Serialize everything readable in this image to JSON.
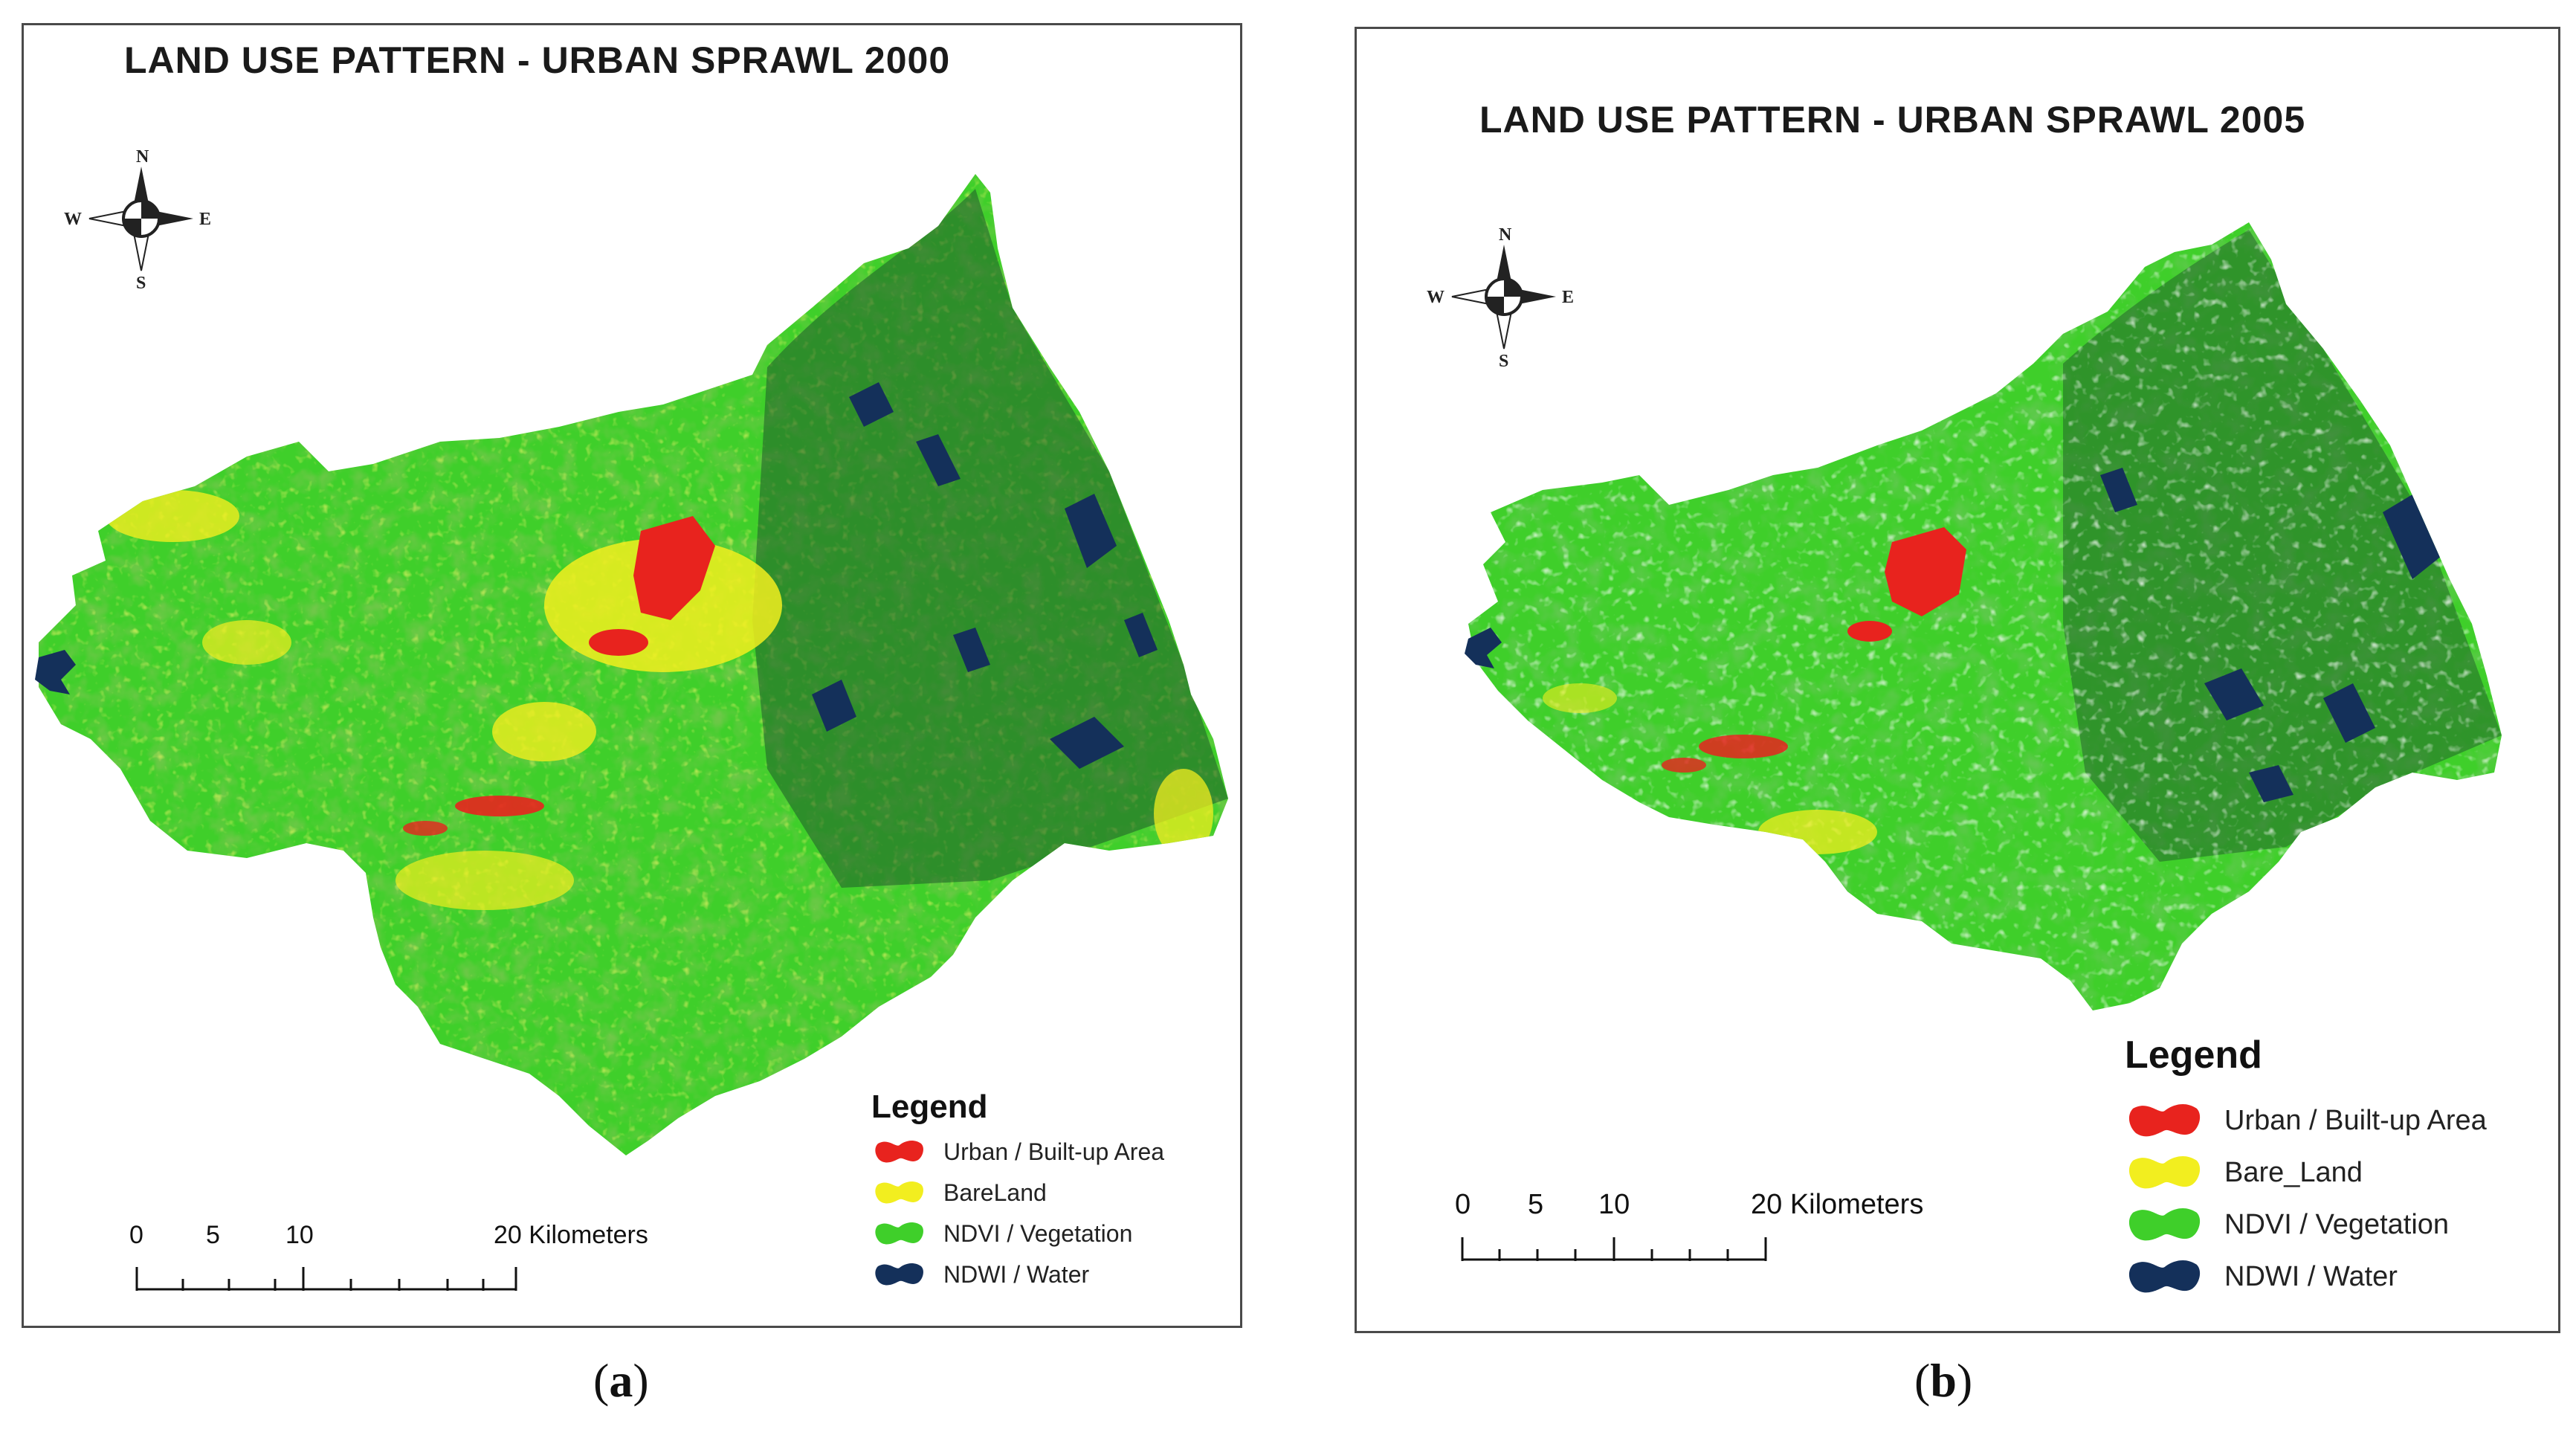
{
  "panels": [
    {
      "title": "LAND USE PATTERN - URBAN SPRAWL 2000",
      "legend": {
        "title": "Legend",
        "items": [
          {
            "label": "Urban / Built-up Area",
            "color": "#e8231e"
          },
          {
            "label": "BareLand",
            "color": "#f2ee1f"
          },
          {
            "label": "NDVI / Vegetation",
            "color": "#3fcf2a"
          },
          {
            "label": "NDWI / Water",
            "color": "#14305a"
          }
        ]
      },
      "scale": {
        "ticks": [
          "0",
          "5",
          "10"
        ],
        "end_label": "20 Kilometers"
      },
      "compass": {
        "n": "N",
        "s": "S",
        "e": "E",
        "w": "W"
      },
      "caption": {
        "open": "(",
        "letter": "a",
        "close": ")"
      }
    },
    {
      "title": "LAND USE PATTERN - URBAN SPRAWL 2005",
      "legend": {
        "title": "Legend",
        "items": [
          {
            "label": "Urban / Built-up Area",
            "color": "#e8231e"
          },
          {
            "label": "Bare_Land",
            "color": "#f2ee1f"
          },
          {
            "label": "NDVI / Vegetation",
            "color": "#3fcf2a"
          },
          {
            "label": "NDWI / Water",
            "color": "#14305a"
          }
        ]
      },
      "scale": {
        "ticks": [
          "0",
          "5",
          "10"
        ],
        "end_label": "20 Kilometers"
      },
      "compass": {
        "n": "N",
        "s": "S",
        "e": "E",
        "w": "W"
      },
      "caption": {
        "open": "(",
        "letter": "b",
        "close": ")"
      }
    }
  ],
  "colors": {
    "urban": "#e8231e",
    "bare": "#f2ee1f",
    "vegetation": "#3fcf2a",
    "vegetation_dark": "#2aa81e",
    "water": "#14305a",
    "frame": "#4a4a4a"
  }
}
